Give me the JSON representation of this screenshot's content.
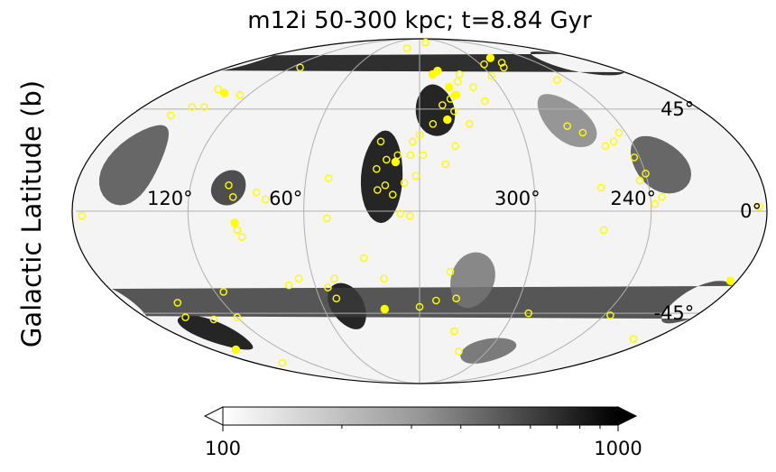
{
  "chart_data": {
    "type": "heatmap",
    "projection": "mollweide",
    "title": "m12i 50-300 kpc; t=8.84 Gyr",
    "ylabel": "Galactic Latitude (b)",
    "xlabel": "",
    "grid": true,
    "longitude_direction": "increasing-left",
    "longitude_ticks": [
      {
        "value": 120,
        "label": "120°"
      },
      {
        "value": 60,
        "label": "60°"
      },
      {
        "value": 300,
        "label": "300°"
      },
      {
        "value": 240,
        "label": "240°"
      }
    ],
    "latitude_ticks": [
      {
        "value": 45,
        "label": "45°"
      },
      {
        "value": 0,
        "label": "0°"
      },
      {
        "value": -45,
        "label": "-45°"
      }
    ],
    "colormap": "gray_r",
    "color_scale": "log",
    "colorbar": {
      "min": 100,
      "max": 1000,
      "extend": "both",
      "orientation": "horizontal",
      "tick_labels": [
        {
          "value": 100,
          "label": "100"
        },
        {
          "value": 1000,
          "label": "1000"
        }
      ],
      "minor_ticks": [
        200,
        300,
        400,
        500,
        600,
        700,
        800,
        900
      ]
    },
    "density_features": [
      {
        "lon": 20,
        "lat": 15,
        "width_lon": 22,
        "width_lat": 40,
        "value": 1000
      },
      {
        "lon": 350,
        "lat": 45,
        "width_lon": 25,
        "width_lat": 25,
        "value": 1000
      },
      {
        "lon": 45,
        "lat": -42,
        "width_lon": 22,
        "width_lat": 22,
        "value": 1000
      },
      {
        "lon": 150,
        "lat": -55,
        "width_lon": 35,
        "width_lat": 18,
        "value": 1000
      },
      {
        "lon": 200,
        "lat": 70,
        "width_lon": 60,
        "width_lat": 15,
        "value": 900
      },
      {
        "lon": 100,
        "lat": 10,
        "width_lon": 18,
        "width_lat": 15,
        "value": 650
      },
      {
        "lon": 155,
        "lat": 20,
        "width_lon": 30,
        "width_lat": 35,
        "value": 500
      },
      {
        "lon": 230,
        "lat": 20,
        "width_lon": 30,
        "width_lat": 25,
        "value": 500
      },
      {
        "lon": 190,
        "lat": -40,
        "width_lon": 30,
        "width_lat": 20,
        "value": 600
      },
      {
        "lon": 330,
        "lat": -30,
        "width_lon": 25,
        "width_lat": 25,
        "value": 350
      },
      {
        "lon": 270,
        "lat": 40,
        "width_lon": 30,
        "width_lat": 25,
        "value": 300
      },
      {
        "lon": 300,
        "lat": -65,
        "width_lon": 45,
        "width_lat": 15,
        "value": 400
      }
    ],
    "satellites_filled": [
      {
        "lon": 344,
        "lat": 65
      },
      {
        "lon": 349,
        "lat": 63
      },
      {
        "lon": 338,
        "lat": 56
      },
      {
        "lon": 343,
        "lat": 40
      },
      {
        "lon": 13,
        "lat": 21
      },
      {
        "lon": 96,
        "lat": -5
      },
      {
        "lon": 22,
        "lat": -43
      },
      {
        "lon": 139,
        "lat": 53
      },
      {
        "lon": 160,
        "lat": -64
      },
      {
        "lon": 280,
        "lat": 73
      },
      {
        "lon": 184,
        "lat": -30
      },
      {
        "lon": 335,
        "lat": 52
      }
    ],
    "satellites_open": [
      {
        "lon": 0,
        "lat": 33
      },
      {
        "lon": 352,
        "lat": 38
      },
      {
        "lon": 345,
        "lat": 47
      },
      {
        "lon": 339,
        "lat": 50
      },
      {
        "lon": 334,
        "lat": 52
      },
      {
        "lon": 340,
        "lat": 28
      },
      {
        "lon": 338,
        "lat": 44
      },
      {
        "lon": 330,
        "lat": 38
      },
      {
        "lon": 358,
        "lat": 24
      },
      {
        "lon": 5,
        "lat": 24
      },
      {
        "lon": 12,
        "lat": 24
      },
      {
        "lon": 18,
        "lat": 22
      },
      {
        "lon": 23,
        "lat": 18
      },
      {
        "lon": 8,
        "lat": 12
      },
      {
        "lon": 14,
        "lat": 7
      },
      {
        "lon": 22,
        "lat": 9
      },
      {
        "lon": 18,
        "lat": 11
      },
      {
        "lon": 2,
        "lat": 15
      },
      {
        "lon": 346,
        "lat": 20
      },
      {
        "lon": 4,
        "lat": 30
      },
      {
        "lon": 22,
        "lat": 30
      },
      {
        "lon": 10,
        "lat": -1
      },
      {
        "lon": 5,
        "lat": -2
      },
      {
        "lon": 48,
        "lat": 14
      },
      {
        "lon": 48,
        "lat": -3
      },
      {
        "lon": 85,
        "lat": 8
      },
      {
        "lon": 80,
        "lat": 5
      },
      {
        "lon": 93,
        "lat": -11
      },
      {
        "lon": 68,
        "lat": -29
      },
      {
        "lon": 75,
        "lat": -32
      },
      {
        "lon": 53,
        "lat": -33
      },
      {
        "lon": 50,
        "lat": -38
      },
      {
        "lon": 20,
        "lat": -29
      },
      {
        "lon": 0,
        "lat": -42
      },
      {
        "lon": 350,
        "lat": -39
      },
      {
        "lon": 338,
        "lat": -38
      },
      {
        "lon": 343,
        "lat": -26
      },
      {
        "lon": 335,
        "lat": -54
      },
      {
        "lon": 325,
        "lat": -65
      },
      {
        "lon": 330,
        "lat": 59
      },
      {
        "lon": 326,
        "lat": 63
      },
      {
        "lon": 320,
        "lat": 56
      },
      {
        "lon": 20,
        "lat": 80
      },
      {
        "lon": 345,
        "lat": 85
      },
      {
        "lon": 316,
        "lat": 49
      },
      {
        "lon": 300,
        "lat": 62
      },
      {
        "lon": 296,
        "lat": 69
      },
      {
        "lon": 281,
        "lat": 67
      },
      {
        "lon": 276,
        "lat": 70
      },
      {
        "lon": 272,
        "lat": 37
      },
      {
        "lon": 265,
        "lat": 34
      },
      {
        "lon": 256,
        "lat": 28
      },
      {
        "lon": 250,
        "lat": 30
      },
      {
        "lon": 243,
        "lat": 23
      },
      {
        "lon": 240,
        "lat": 16
      },
      {
        "lon": 238,
        "lat": 3
      },
      {
        "lon": 234,
        "lat": 6
      },
      {
        "lon": 244,
        "lat": 13
      },
      {
        "lon": 244,
        "lat": 34
      },
      {
        "lon": 250,
        "lat": 60
      },
      {
        "lon": 184,
        "lat": 2
      },
      {
        "lon": 175,
        "lat": -2
      },
      {
        "lon": 148,
        "lat": 46
      },
      {
        "lon": 155,
        "lat": 42
      },
      {
        "lon": 140,
        "lat": 46
      },
      {
        "lon": 148,
        "lat": 55
      },
      {
        "lon": 126,
        "lat": 52
      },
      {
        "lon": 112,
        "lat": 67
      },
      {
        "lon": 100,
        "lat": 11
      },
      {
        "lon": 97,
        "lat": 6
      },
      {
        "lon": 95,
        "lat": -8
      },
      {
        "lon": 148,
        "lat": -40
      },
      {
        "lon": 120,
        "lat": -47
      },
      {
        "lon": 115,
        "lat": -35
      },
      {
        "lon": 137,
        "lat": -48
      },
      {
        "lon": 154,
        "lat": -47
      },
      {
        "lon": 150,
        "lat": -72
      },
      {
        "lon": 195,
        "lat": -58
      },
      {
        "lon": 236,
        "lat": -46
      },
      {
        "lon": 264,
        "lat": -8
      },
      {
        "lon": 265,
        "lat": 10
      },
      {
        "lon": 290,
        "lat": -45
      },
      {
        "lon": 48,
        "lat": -29
      },
      {
        "lon": 30,
        "lat": -20
      }
    ]
  }
}
